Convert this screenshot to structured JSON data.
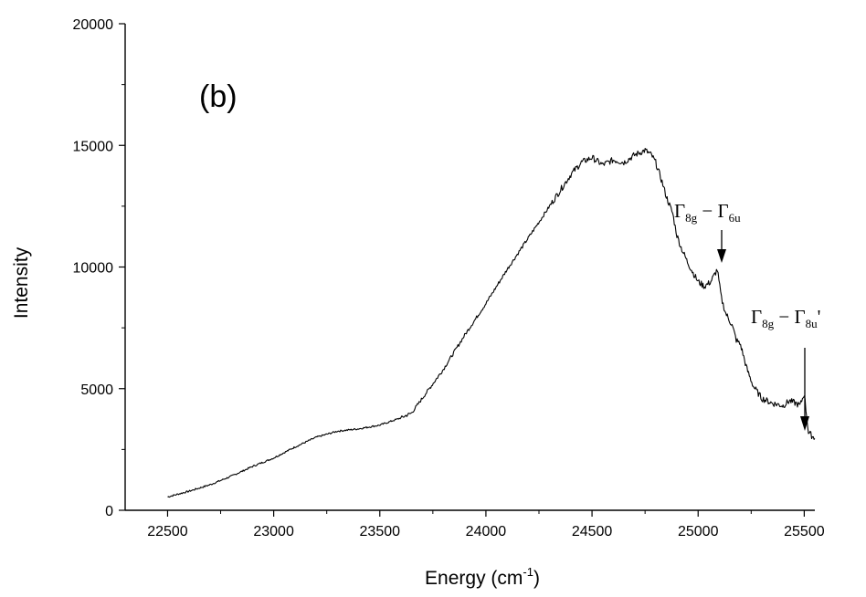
{
  "chart_data": {
    "type": "line",
    "title": "",
    "panel_label": "(b)",
    "xlabel": {
      "base": "Energy (cm",
      "sup": "-1",
      "tail": ")"
    },
    "ylabel": "Intensity",
    "xlim": [
      22300,
      25550
    ],
    "ylim": [
      0,
      20000
    ],
    "xticks": [
      22500,
      23000,
      23500,
      24000,
      24500,
      25000,
      25500
    ],
    "yticks": [
      0,
      5000,
      10000,
      15000,
      20000
    ],
    "grid": false,
    "line_color": "#000000",
    "series": [
      {
        "x": [
          22500,
          22600,
          22700,
          22800,
          22900,
          23000,
          23100,
          23200,
          23300,
          23400,
          23500,
          23600,
          23650,
          23700,
          23800,
          23900,
          24000,
          24100,
          24200,
          24300,
          24400,
          24450,
          24500,
          24550,
          24600,
          24650,
          24700,
          24750,
          24780,
          24800,
          24830,
          24850,
          24880,
          24900,
          24920,
          24950,
          24980,
          25000,
          25030,
          25060,
          25090,
          25110,
          25130,
          25160,
          25180,
          25200,
          25230,
          25260,
          25300,
          25350,
          25400,
          25430,
          25460,
          25480,
          25500,
          25520,
          25550
        ],
        "y": [
          550,
          780,
          1050,
          1400,
          1800,
          2150,
          2600,
          3000,
          3250,
          3350,
          3500,
          3800,
          4000,
          4600,
          5800,
          7200,
          8500,
          9900,
          11200,
          12500,
          13800,
          14300,
          14500,
          14200,
          14400,
          14300,
          14600,
          14800,
          14600,
          14300,
          13500,
          12900,
          12200,
          11300,
          10800,
          10200,
          9700,
          9400,
          9200,
          9400,
          9900,
          8700,
          8100,
          7600,
          7000,
          6800,
          5800,
          5100,
          4600,
          4400,
          4300,
          4500,
          4400,
          4300,
          4800,
          3200,
          2950
        ]
      }
    ],
    "annotations": [
      {
        "main": "Γ",
        "sub1": "8g",
        "sep": " − Γ",
        "sub2": "6u",
        "tail": "",
        "x": 25110,
        "y": 9900
      },
      {
        "main": "Γ",
        "sub1": "8g",
        "sep": " − Γ",
        "sub2": "8u",
        "tail": "'",
        "x": 25500,
        "y": 4800
      }
    ]
  }
}
